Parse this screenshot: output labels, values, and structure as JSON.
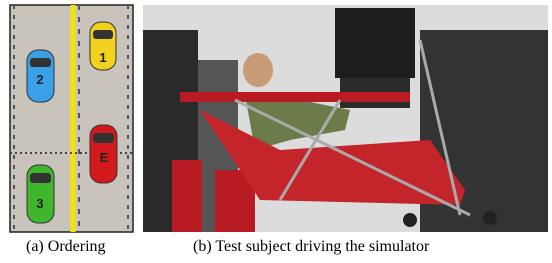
{
  "figure": {
    "subfigures": [
      {
        "caption": "(a) Ordering",
        "cars": [
          {
            "label": "1"
          },
          {
            "label": "2"
          },
          {
            "label": "E"
          },
          {
            "label": "3"
          }
        ]
      },
      {
        "caption": "(b) Test subject driving the simulator"
      }
    ]
  }
}
